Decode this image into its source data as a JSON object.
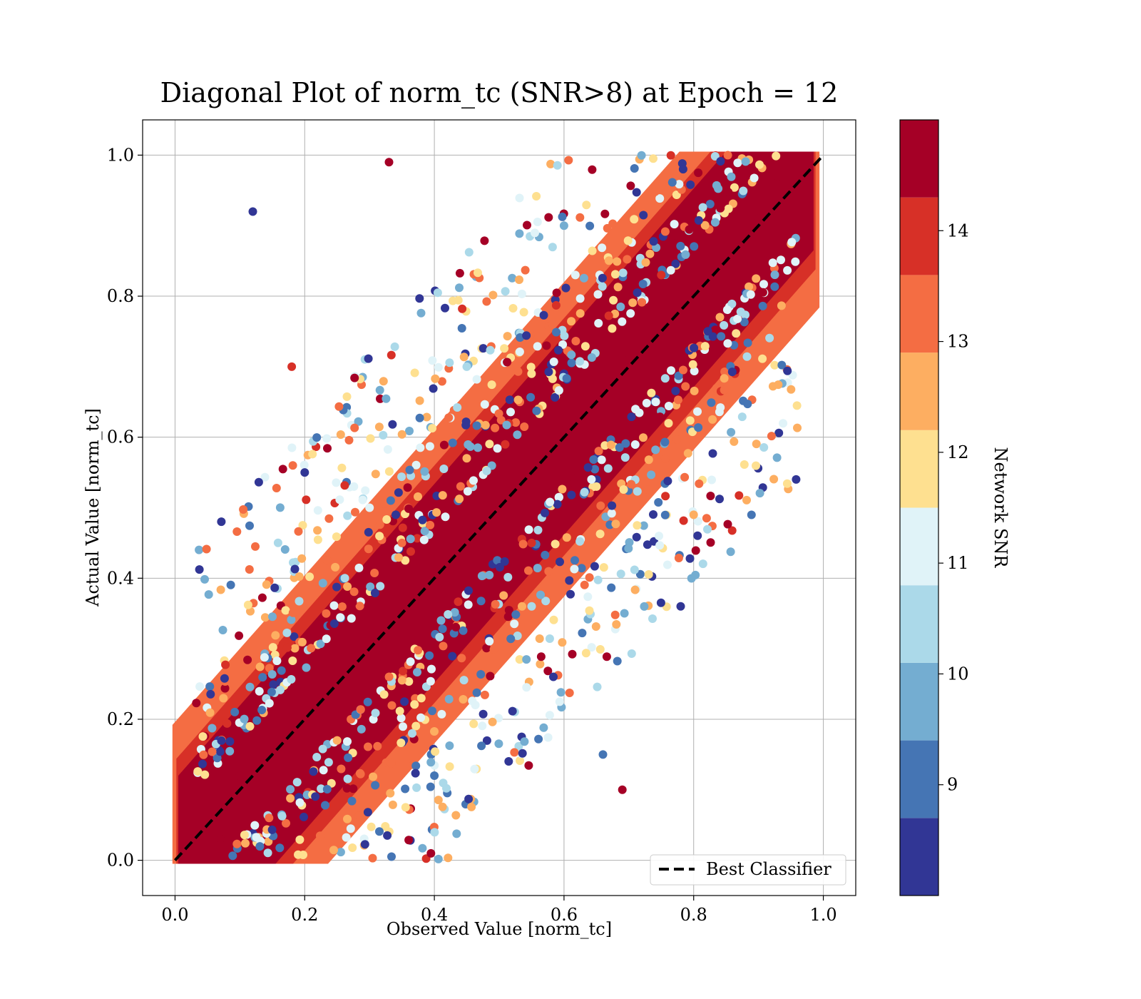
{
  "chart_data": {
    "type": "scatter",
    "title": "Diagonal Plot of norm_tc (SNR>8) at Epoch = 12",
    "xlabel": "Observed Value [norm_tc]",
    "ylabel": "Actual Value [norm_tc]",
    "xlim": [
      -0.05,
      1.05
    ],
    "ylim": [
      -0.05,
      1.05
    ],
    "xticks": [
      "0.0",
      "0.2",
      "0.4",
      "0.6",
      "0.8",
      "1.0"
    ],
    "yticks": [
      "0.0",
      "0.2",
      "0.4",
      "0.6",
      "0.8",
      "1.0"
    ],
    "grid": true,
    "legend": {
      "position": "lower-right",
      "entries": [
        "Best Classifier"
      ]
    },
    "reference_line": {
      "name": "Best Classifier",
      "style": "dashed",
      "color": "#000000",
      "x": [
        0.0,
        1.0
      ],
      "y": [
        0.0,
        1.0
      ]
    },
    "colorbar": {
      "label": "Network SNR",
      "range": [
        8,
        15
      ],
      "ticks": [
        "9",
        "10",
        "11",
        "12",
        "13",
        "14"
      ],
      "bins": [
        {
          "from": 8.0,
          "to": 8.7,
          "color": "#313695"
        },
        {
          "from": 8.7,
          "to": 9.4,
          "color": "#4575b4"
        },
        {
          "from": 9.4,
          "to": 10.1,
          "color": "#74add1"
        },
        {
          "from": 10.1,
          "to": 10.8,
          "color": "#abd9e9"
        },
        {
          "from": 10.8,
          "to": 11.5,
          "color": "#e0f3f8"
        },
        {
          "from": 11.5,
          "to": 12.2,
          "color": "#fee090"
        },
        {
          "from": 12.2,
          "to": 12.9,
          "color": "#fdae61"
        },
        {
          "from": 12.9,
          "to": 13.6,
          "color": "#f46d43"
        },
        {
          "from": 13.6,
          "to": 14.3,
          "color": "#d73027"
        },
        {
          "from": 14.3,
          "to": 15.0,
          "color": "#a50026"
        }
      ]
    },
    "points": [
      {
        "x": 0.1,
        "y": 0.12,
        "snr": 14.8
      },
      {
        "x": 0.2,
        "y": 0.21,
        "snr": 14.7
      },
      {
        "x": 0.3,
        "y": 0.31,
        "snr": 14.9
      },
      {
        "x": 0.4,
        "y": 0.41,
        "snr": 14.6
      },
      {
        "x": 0.5,
        "y": 0.5,
        "snr": 14.8
      },
      {
        "x": 0.6,
        "y": 0.61,
        "snr": 14.7
      },
      {
        "x": 0.7,
        "y": 0.71,
        "snr": 14.9
      },
      {
        "x": 0.8,
        "y": 0.8,
        "snr": 14.8
      },
      {
        "x": 0.9,
        "y": 0.91,
        "snr": 14.7
      },
      {
        "x": 0.07,
        "y": 0.03,
        "snr": 14.9
      },
      {
        "x": 0.93,
        "y": 0.97,
        "snr": 14.8
      },
      {
        "x": 0.35,
        "y": 0.45,
        "snr": 13.2
      },
      {
        "x": 0.55,
        "y": 0.45,
        "snr": 13.9
      },
      {
        "x": 0.75,
        "y": 0.83,
        "snr": 13.6
      },
      {
        "x": 0.25,
        "y": 0.17,
        "snr": 12.5
      },
      {
        "x": 0.45,
        "y": 0.57,
        "snr": 12.4
      },
      {
        "x": 0.65,
        "y": 0.53,
        "snr": 11.9
      },
      {
        "x": 0.3,
        "y": 0.5,
        "snr": 11.2
      },
      {
        "x": 0.55,
        "y": 0.36,
        "snr": 10.6
      },
      {
        "x": 0.45,
        "y": 0.7,
        "snr": 10.3
      },
      {
        "x": 0.6,
        "y": 0.9,
        "snr": 9.6
      },
      {
        "x": 0.4,
        "y": 0.12,
        "snr": 9.2
      },
      {
        "x": 0.2,
        "y": 0.55,
        "snr": 8.5
      },
      {
        "x": 0.12,
        "y": 0.92,
        "snr": 8.4
      },
      {
        "x": 0.78,
        "y": 0.36,
        "snr": 8.3
      },
      {
        "x": 0.8,
        "y": 0.49,
        "snr": 12.8
      },
      {
        "x": 0.69,
        "y": 0.1,
        "snr": 14.5
      },
      {
        "x": 0.33,
        "y": 0.99,
        "snr": 14.6
      },
      {
        "x": 0.18,
        "y": 0.7,
        "snr": 14.2
      },
      {
        "x": 0.66,
        "y": 0.15,
        "snr": 9.1
      }
    ]
  }
}
